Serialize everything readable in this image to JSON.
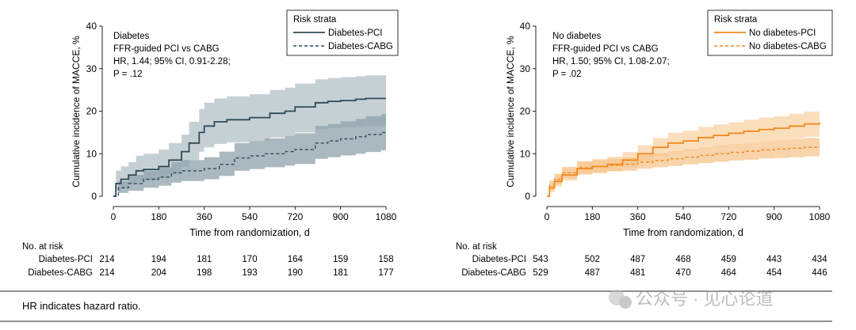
{
  "chart_data": [
    {
      "type": "line",
      "subtype": "cumulative-incidence with 95% CI bands",
      "panel": "left",
      "xlabel": "Time from randomization, d",
      "ylabel": "Cumulative incidence of MACCE, %",
      "xlim": [
        0,
        1080
      ],
      "ylim": [
        0,
        40
      ],
      "xticks": [
        0,
        180,
        360,
        540,
        720,
        900,
        1080
      ],
      "yticks": [
        0,
        10,
        20,
        30,
        40
      ],
      "annotation": [
        "Diabetes",
        "FFR-guided PCI vs CABG",
        "HR, 1.44; 95% CI, 0.91-2.28;",
        "P = .12"
      ],
      "legend": {
        "title": "Risk strata",
        "position": "top-right"
      },
      "colors": {
        "pci": "#2f4b56",
        "cabg": "#2f4b56",
        "band_pci": "#c2ced3",
        "band_cabg": "#8ea2aa",
        "band_overlap": "#7d9199"
      },
      "series": [
        {
          "name": "Diabetes-PCI",
          "style": "solid",
          "x": [
            0,
            10,
            30,
            60,
            90,
            120,
            180,
            220,
            270,
            300,
            340,
            360,
            400,
            450,
            540,
            620,
            680,
            720,
            800,
            850,
            900,
            960,
            1000,
            1080
          ],
          "y": [
            0,
            3,
            4,
            5,
            6,
            6.3,
            7,
            8.5,
            10.5,
            12.5,
            15,
            16.5,
            17.5,
            18,
            18.5,
            19.5,
            20,
            21,
            22,
            22.3,
            22.5,
            22.8,
            23,
            23
          ],
          "lower": [
            0,
            1.2,
            2,
            2.8,
            3.5,
            3.7,
            4.3,
            5.3,
            7,
            8.5,
            10.5,
            11.5,
            12.3,
            12.7,
            13,
            13.8,
            14.2,
            15,
            15.8,
            16,
            16.2,
            16.4,
            16.6,
            16.6
          ],
          "upper": [
            0,
            6,
            7,
            8,
            9.5,
            10,
            11,
            12.5,
            14.5,
            17.5,
            20.5,
            22,
            23,
            23.5,
            24,
            25,
            25.5,
            26.5,
            27.5,
            27.8,
            28,
            28.2,
            28.4,
            28.4
          ]
        },
        {
          "name": "Diabetes-CABG",
          "style": "dashed",
          "x": [
            0,
            20,
            60,
            120,
            180,
            230,
            270,
            330,
            360,
            420,
            480,
            540,
            600,
            680,
            720,
            800,
            850,
            900,
            960,
            1000,
            1060,
            1080
          ],
          "y": [
            0,
            2,
            3,
            4,
            4.5,
            5.5,
            6,
            6,
            6.5,
            7.5,
            9,
            9.5,
            10,
            10.5,
            11,
            12.5,
            13,
            13.5,
            14,
            14.5,
            15,
            15
          ],
          "lower": [
            0,
            0.8,
            1.3,
            2,
            2.5,
            3.2,
            3.6,
            3.6,
            4,
            4.8,
            6,
            6.4,
            6.8,
            7.2,
            7.6,
            8.8,
            9.2,
            9.6,
            10,
            10.4,
            10.8,
            10.8
          ],
          "upper": [
            0,
            3.5,
            5,
            6,
            6.8,
            8,
            8.5,
            8.5,
            9.2,
            10.5,
            12.5,
            13,
            13.6,
            14.2,
            14.8,
            16.5,
            17,
            17.6,
            18.2,
            18.8,
            19.3,
            19.3
          ]
        }
      ],
      "at_risk": {
        "label": "No. at risk",
        "rows": [
          {
            "group": "Diabetes-PCI",
            "values": [
              214,
              194,
              181,
              170,
              164,
              159,
              158
            ]
          },
          {
            "group": "Diabetes-CABG",
            "values": [
              214,
              204,
              198,
              193,
              190,
              181,
              177
            ]
          }
        ]
      }
    },
    {
      "type": "line",
      "subtype": "cumulative-incidence with 95% CI bands",
      "panel": "right",
      "xlabel": "Time from randomization, d",
      "ylabel": "Cumulative incidence of MACCE, %",
      "xlim": [
        0,
        1080
      ],
      "ylim": [
        0,
        40
      ],
      "xticks": [
        0,
        180,
        360,
        540,
        720,
        900,
        1080
      ],
      "yticks": [
        0,
        10,
        20,
        30,
        40
      ],
      "annotation": [
        "No diabetes",
        "FFR-guided PCI vs CABG",
        "HR, 1.50; 95% CI, 1.08-2.07;",
        "P = .02"
      ],
      "legend": {
        "title": "Risk strata",
        "position": "top-right"
      },
      "colors": {
        "pci": "#f08a1e",
        "cabg": "#f08a1e",
        "band_pci": "#fbdcb8",
        "band_cabg": "#f7c48c",
        "band_overlap": "#f6b877"
      },
      "series": [
        {
          "name": "No diabetes-PCI",
          "style": "solid",
          "x": [
            0,
            10,
            30,
            60,
            120,
            180,
            240,
            300,
            360,
            420,
            480,
            540,
            600,
            660,
            720,
            780,
            840,
            900,
            960,
            1020,
            1080
          ],
          "y": [
            0,
            2,
            3.5,
            5,
            6.5,
            7,
            7.5,
            8.5,
            10,
            11.5,
            12.5,
            13,
            13.8,
            14.3,
            14.8,
            15.3,
            15.7,
            16,
            16.5,
            17,
            17.3
          ],
          "lower": [
            0,
            1,
            2.3,
            3.7,
            5,
            5.4,
            5.9,
            6.8,
            8.1,
            9.4,
            10.3,
            10.7,
            11.4,
            11.8,
            12.2,
            12.6,
            12.9,
            13.2,
            13.6,
            14,
            14.3
          ],
          "upper": [
            0,
            3,
            4.8,
            6.5,
            8.2,
            8.8,
            9.3,
            10.4,
            12,
            13.7,
            14.9,
            15.4,
            16.3,
            16.9,
            17.4,
            18,
            18.5,
            18.8,
            19.4,
            19.9,
            20.3
          ]
        },
        {
          "name": "No diabetes-CABG",
          "style": "dashed",
          "x": [
            0,
            10,
            30,
            60,
            120,
            180,
            240,
            300,
            360,
            420,
            480,
            540,
            600,
            660,
            720,
            780,
            840,
            900,
            960,
            1020,
            1080
          ],
          "y": [
            0,
            2.5,
            4,
            5.5,
            6.7,
            7,
            7.3,
            7.5,
            8,
            8.4,
            8.8,
            9.2,
            9.6,
            10,
            10.3,
            10.6,
            10.9,
            11.1,
            11.3,
            11.5,
            11.7
          ],
          "lower": [
            0,
            1.4,
            2.8,
            4.2,
            5.3,
            5.6,
            5.9,
            6,
            6.5,
            6.8,
            7.1,
            7.5,
            7.8,
            8.1,
            8.4,
            8.6,
            8.9,
            9,
            9.2,
            9.4,
            9.6
          ],
          "upper": [
            0,
            3.7,
            5.3,
            6.9,
            8.2,
            8.5,
            8.8,
            9.1,
            9.7,
            10.1,
            10.6,
            11,
            11.5,
            11.9,
            12.3,
            12.6,
            12.9,
            13.2,
            13.5,
            13.7,
            14
          ]
        }
      ],
      "at_risk": {
        "label": "No. at risk",
        "rows": [
          {
            "group": "Diabetes-PCI",
            "values": [
              543,
              502,
              487,
              468,
              459,
              443,
              434
            ]
          },
          {
            "group": "Diabetes-CABG",
            "values": [
              529,
              487,
              481,
              470,
              464,
              454,
              446
            ]
          }
        ]
      }
    }
  ],
  "footnote": "HR indicates hazard ratio.",
  "watermark": "公众号 · 见心论道"
}
